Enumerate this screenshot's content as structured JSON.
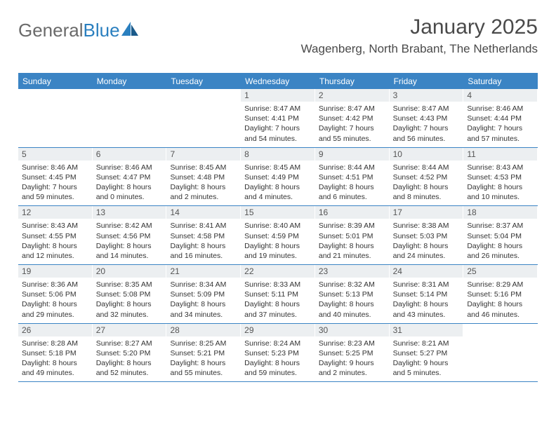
{
  "brand": {
    "part1": "General",
    "part2": "Blue"
  },
  "title": "January 2025",
  "location": "Wagenberg, North Brabant, The Netherlands",
  "colors": {
    "header_bg": "#3b84c4",
    "header_text": "#ffffff",
    "daynum_bg": "#eceff1",
    "body_text": "#333333",
    "title_text": "#4a4a4a",
    "logo_gray": "#6a6a6a",
    "logo_blue": "#2a7fbf",
    "border": "#3b84c4",
    "background": "#ffffff"
  },
  "typography": {
    "title_fontsize": 30,
    "location_fontsize": 17,
    "header_fontsize": 12,
    "daynum_fontsize": 12,
    "body_fontsize": 10.5,
    "logo_fontsize": 26
  },
  "day_headers": [
    "Sunday",
    "Monday",
    "Tuesday",
    "Wednesday",
    "Thursday",
    "Friday",
    "Saturday"
  ],
  "weeks": [
    [
      {
        "n": "",
        "sr": "",
        "ss": "",
        "dl1": "",
        "dl2": ""
      },
      {
        "n": "",
        "sr": "",
        "ss": "",
        "dl1": "",
        "dl2": ""
      },
      {
        "n": "",
        "sr": "",
        "ss": "",
        "dl1": "",
        "dl2": ""
      },
      {
        "n": "1",
        "sr": "Sunrise: 8:47 AM",
        "ss": "Sunset: 4:41 PM",
        "dl1": "Daylight: 7 hours",
        "dl2": "and 54 minutes."
      },
      {
        "n": "2",
        "sr": "Sunrise: 8:47 AM",
        "ss": "Sunset: 4:42 PM",
        "dl1": "Daylight: 7 hours",
        "dl2": "and 55 minutes."
      },
      {
        "n": "3",
        "sr": "Sunrise: 8:47 AM",
        "ss": "Sunset: 4:43 PM",
        "dl1": "Daylight: 7 hours",
        "dl2": "and 56 minutes."
      },
      {
        "n": "4",
        "sr": "Sunrise: 8:46 AM",
        "ss": "Sunset: 4:44 PM",
        "dl1": "Daylight: 7 hours",
        "dl2": "and 57 minutes."
      }
    ],
    [
      {
        "n": "5",
        "sr": "Sunrise: 8:46 AM",
        "ss": "Sunset: 4:45 PM",
        "dl1": "Daylight: 7 hours",
        "dl2": "and 59 minutes."
      },
      {
        "n": "6",
        "sr": "Sunrise: 8:46 AM",
        "ss": "Sunset: 4:47 PM",
        "dl1": "Daylight: 8 hours",
        "dl2": "and 0 minutes."
      },
      {
        "n": "7",
        "sr": "Sunrise: 8:45 AM",
        "ss": "Sunset: 4:48 PM",
        "dl1": "Daylight: 8 hours",
        "dl2": "and 2 minutes."
      },
      {
        "n": "8",
        "sr": "Sunrise: 8:45 AM",
        "ss": "Sunset: 4:49 PM",
        "dl1": "Daylight: 8 hours",
        "dl2": "and 4 minutes."
      },
      {
        "n": "9",
        "sr": "Sunrise: 8:44 AM",
        "ss": "Sunset: 4:51 PM",
        "dl1": "Daylight: 8 hours",
        "dl2": "and 6 minutes."
      },
      {
        "n": "10",
        "sr": "Sunrise: 8:44 AM",
        "ss": "Sunset: 4:52 PM",
        "dl1": "Daylight: 8 hours",
        "dl2": "and 8 minutes."
      },
      {
        "n": "11",
        "sr": "Sunrise: 8:43 AM",
        "ss": "Sunset: 4:53 PM",
        "dl1": "Daylight: 8 hours",
        "dl2": "and 10 minutes."
      }
    ],
    [
      {
        "n": "12",
        "sr": "Sunrise: 8:43 AM",
        "ss": "Sunset: 4:55 PM",
        "dl1": "Daylight: 8 hours",
        "dl2": "and 12 minutes."
      },
      {
        "n": "13",
        "sr": "Sunrise: 8:42 AM",
        "ss": "Sunset: 4:56 PM",
        "dl1": "Daylight: 8 hours",
        "dl2": "and 14 minutes."
      },
      {
        "n": "14",
        "sr": "Sunrise: 8:41 AM",
        "ss": "Sunset: 4:58 PM",
        "dl1": "Daylight: 8 hours",
        "dl2": "and 16 minutes."
      },
      {
        "n": "15",
        "sr": "Sunrise: 8:40 AM",
        "ss": "Sunset: 4:59 PM",
        "dl1": "Daylight: 8 hours",
        "dl2": "and 19 minutes."
      },
      {
        "n": "16",
        "sr": "Sunrise: 8:39 AM",
        "ss": "Sunset: 5:01 PM",
        "dl1": "Daylight: 8 hours",
        "dl2": "and 21 minutes."
      },
      {
        "n": "17",
        "sr": "Sunrise: 8:38 AM",
        "ss": "Sunset: 5:03 PM",
        "dl1": "Daylight: 8 hours",
        "dl2": "and 24 minutes."
      },
      {
        "n": "18",
        "sr": "Sunrise: 8:37 AM",
        "ss": "Sunset: 5:04 PM",
        "dl1": "Daylight: 8 hours",
        "dl2": "and 26 minutes."
      }
    ],
    [
      {
        "n": "19",
        "sr": "Sunrise: 8:36 AM",
        "ss": "Sunset: 5:06 PM",
        "dl1": "Daylight: 8 hours",
        "dl2": "and 29 minutes."
      },
      {
        "n": "20",
        "sr": "Sunrise: 8:35 AM",
        "ss": "Sunset: 5:08 PM",
        "dl1": "Daylight: 8 hours",
        "dl2": "and 32 minutes."
      },
      {
        "n": "21",
        "sr": "Sunrise: 8:34 AM",
        "ss": "Sunset: 5:09 PM",
        "dl1": "Daylight: 8 hours",
        "dl2": "and 34 minutes."
      },
      {
        "n": "22",
        "sr": "Sunrise: 8:33 AM",
        "ss": "Sunset: 5:11 PM",
        "dl1": "Daylight: 8 hours",
        "dl2": "and 37 minutes."
      },
      {
        "n": "23",
        "sr": "Sunrise: 8:32 AM",
        "ss": "Sunset: 5:13 PM",
        "dl1": "Daylight: 8 hours",
        "dl2": "and 40 minutes."
      },
      {
        "n": "24",
        "sr": "Sunrise: 8:31 AM",
        "ss": "Sunset: 5:14 PM",
        "dl1": "Daylight: 8 hours",
        "dl2": "and 43 minutes."
      },
      {
        "n": "25",
        "sr": "Sunrise: 8:29 AM",
        "ss": "Sunset: 5:16 PM",
        "dl1": "Daylight: 8 hours",
        "dl2": "and 46 minutes."
      }
    ],
    [
      {
        "n": "26",
        "sr": "Sunrise: 8:28 AM",
        "ss": "Sunset: 5:18 PM",
        "dl1": "Daylight: 8 hours",
        "dl2": "and 49 minutes."
      },
      {
        "n": "27",
        "sr": "Sunrise: 8:27 AM",
        "ss": "Sunset: 5:20 PM",
        "dl1": "Daylight: 8 hours",
        "dl2": "and 52 minutes."
      },
      {
        "n": "28",
        "sr": "Sunrise: 8:25 AM",
        "ss": "Sunset: 5:21 PM",
        "dl1": "Daylight: 8 hours",
        "dl2": "and 55 minutes."
      },
      {
        "n": "29",
        "sr": "Sunrise: 8:24 AM",
        "ss": "Sunset: 5:23 PM",
        "dl1": "Daylight: 8 hours",
        "dl2": "and 59 minutes."
      },
      {
        "n": "30",
        "sr": "Sunrise: 8:23 AM",
        "ss": "Sunset: 5:25 PM",
        "dl1": "Daylight: 9 hours",
        "dl2": "and 2 minutes."
      },
      {
        "n": "31",
        "sr": "Sunrise: 8:21 AM",
        "ss": "Sunset: 5:27 PM",
        "dl1": "Daylight: 9 hours",
        "dl2": "and 5 minutes."
      },
      {
        "n": "",
        "sr": "",
        "ss": "",
        "dl1": "",
        "dl2": ""
      }
    ]
  ]
}
